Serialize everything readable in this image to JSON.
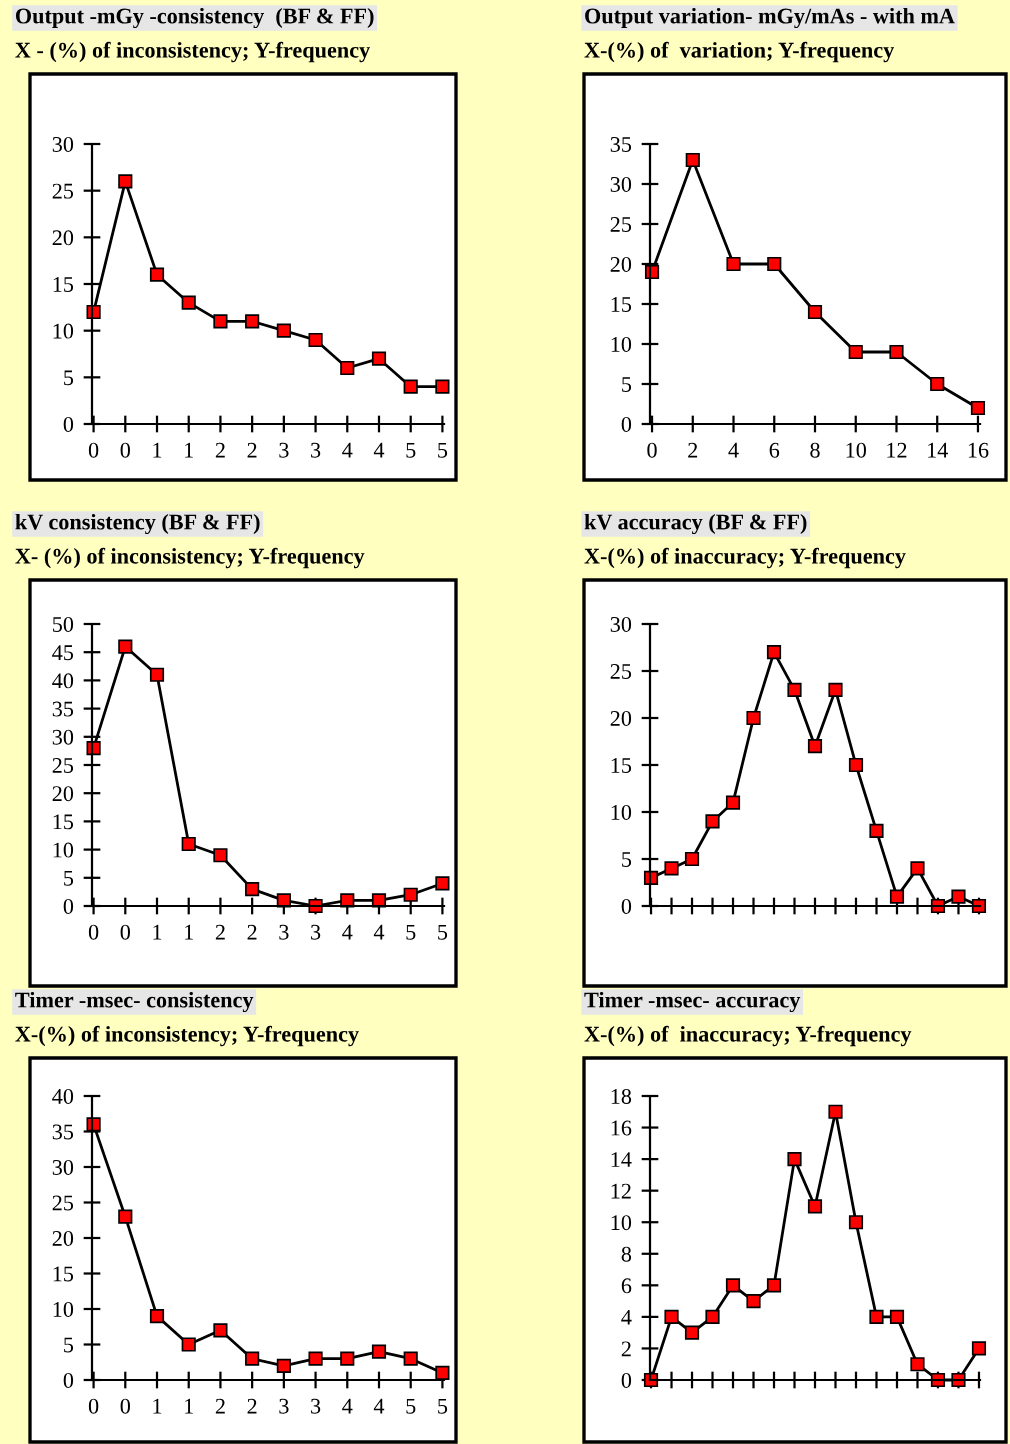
{
  "chart_data": [
    {
      "type": "line",
      "title": "Output -mGy -consistency  (BF & FF)",
      "subtitle": "X - (%) of inconsistency; Y-frequency",
      "categories": [
        "0",
        "0",
        "1",
        "1",
        "2",
        "2",
        "3",
        "3",
        "4",
        "4",
        "5",
        "5"
      ],
      "series": [
        {
          "color": "#ff0000",
          "values": [
            12,
            26,
            16,
            13,
            11,
            11,
            10,
            9,
            6,
            7,
            4,
            4
          ]
        }
      ],
      "ylim": [
        0,
        30
      ],
      "yticks": [
        0,
        5,
        10,
        15,
        20,
        25,
        30
      ],
      "marker": "square",
      "line_style": "solid"
    },
    {
      "type": "line",
      "title": "Output variation- mGy/mAs - with mA",
      "subtitle": "X-(%) of  variation; Y-frequency",
      "categories": [
        "0",
        "2",
        "4",
        "6",
        "8",
        "10",
        "12",
        "14",
        "16"
      ],
      "series": [
        {
          "color": "#ff0000",
          "values": [
            19,
            33,
            20,
            20,
            14,
            9,
            9,
            5,
            2
          ]
        }
      ],
      "ylim": [
        0,
        35
      ],
      "yticks": [
        0,
        5,
        10,
        15,
        20,
        25,
        30,
        35
      ],
      "marker": "square",
      "line_style": "solid"
    },
    {
      "type": "line",
      "title": "kV consistency (BF & FF)",
      "subtitle": "X- (%) of inconsistency; Y-frequency",
      "categories": [
        "0",
        "0",
        "1",
        "1",
        "2",
        "2",
        "3",
        "3",
        "4",
        "4",
        "5",
        "5"
      ],
      "series": [
        {
          "color": "#ff0000",
          "values": [
            28,
            46,
            41,
            11,
            9,
            3,
            1,
            0,
            1,
            1,
            2,
            4
          ]
        }
      ],
      "ylim": [
        0,
        50
      ],
      "yticks": [
        0,
        5,
        10,
        15,
        20,
        25,
        30,
        35,
        40,
        45,
        50
      ],
      "marker": "square",
      "line_style": "solid"
    },
    {
      "type": "line",
      "title": "kV accuracy (BF & FF)",
      "subtitle": "X-(%) of inaccuracy; Y-frequency",
      "categories": [
        null,
        null,
        null,
        null,
        null,
        null,
        null,
        null,
        null,
        null,
        null,
        null,
        null,
        null,
        null,
        null,
        null
      ],
      "series": [
        {
          "color": "#ff0000",
          "values": [
            3,
            4,
            5,
            9,
            11,
            20,
            27,
            23,
            17,
            23,
            15,
            8,
            1,
            4,
            0,
            1,
            0
          ]
        }
      ],
      "ylim": [
        0,
        30
      ],
      "yticks": [
        0,
        5,
        10,
        15,
        20,
        25,
        30
      ],
      "marker": "square",
      "line_style": "solid"
    },
    {
      "type": "line",
      "title": "Timer -msec- consistency",
      "subtitle": "X-(%) of inconsistency; Y-frequency",
      "categories": [
        "0",
        "0",
        "1",
        "1",
        "2",
        "2",
        "3",
        "3",
        "4",
        "4",
        "5",
        "5"
      ],
      "series": [
        {
          "color": "#ff0000",
          "values": [
            36,
            23,
            9,
            5,
            7,
            3,
            2,
            3,
            3,
            4,
            3,
            1
          ]
        }
      ],
      "ylim": [
        0,
        40
      ],
      "yticks": [
        0,
        5,
        10,
        15,
        20,
        25,
        30,
        35,
        40
      ],
      "marker": "square",
      "line_style": "solid"
    },
    {
      "type": "line",
      "title": "Timer -msec- accuracy",
      "subtitle": "X-(%) of  inaccuracy; Y-frequency",
      "categories": [
        null,
        null,
        null,
        null,
        null,
        null,
        null,
        null,
        null,
        null,
        null,
        null,
        null,
        null,
        null,
        null,
        null
      ],
      "series": [
        {
          "color": "#ff0000",
          "values": [
            0,
            4,
            3,
            4,
            6,
            5,
            6,
            14,
            11,
            17,
            10,
            4,
            4,
            1,
            0,
            0,
            2
          ]
        }
      ],
      "ylim": [
        0,
        18
      ],
      "yticks": [
        0,
        2,
        4,
        6,
        8,
        10,
        12,
        14,
        16,
        18
      ],
      "marker": "square",
      "line_style": "solid"
    }
  ]
}
